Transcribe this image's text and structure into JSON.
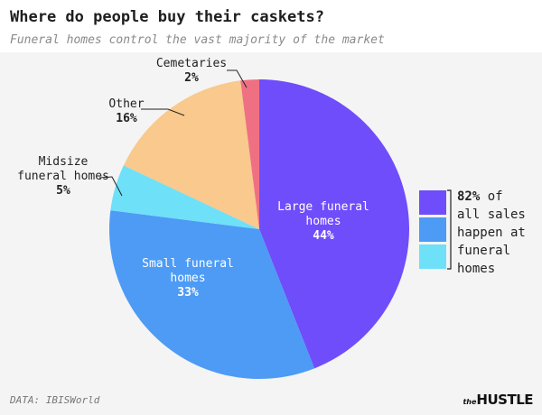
{
  "header": {
    "title": "Where do people buy their caskets?",
    "subtitle": "Funeral homes control the vast majority of the market"
  },
  "chart_data": {
    "type": "pie",
    "slices": [
      {
        "name_lines": [
          "Large funeral",
          "homes"
        ],
        "pct_label": "44%",
        "value": 44,
        "color": "#6f4dfb",
        "label_position": "inside"
      },
      {
        "name_lines": [
          "Small funeral",
          "homes"
        ],
        "pct_label": "33%",
        "value": 33,
        "color": "#4d9bf5",
        "label_position": "inside"
      },
      {
        "name_lines": [
          "Midsize",
          "funeral homes"
        ],
        "pct_label": "5%",
        "value": 5,
        "color": "#6ee0f8",
        "label_position": "outside"
      },
      {
        "name_lines": [
          "Other"
        ],
        "pct_label": "16%",
        "value": 16,
        "color": "#f9c98d",
        "label_position": "outside"
      },
      {
        "name_lines": [
          "Cemetaries"
        ],
        "pct_label": "2%",
        "value": 2,
        "color": "#ef7083",
        "label_position": "outside"
      }
    ],
    "start": "12 o'clock",
    "direction": "clockwise",
    "annotation": {
      "highlight": "82%",
      "first_line_rest": " of",
      "lines": [
        "all sales",
        "happen at",
        "funeral",
        "homes"
      ],
      "swatch_colors": [
        "#6f4dfb",
        "#4d9bf5",
        "#6ee0f8"
      ]
    }
  },
  "footer": {
    "source": "DATA: IBISWorld",
    "brand_small": "the",
    "brand_big": "HUSTLE"
  }
}
